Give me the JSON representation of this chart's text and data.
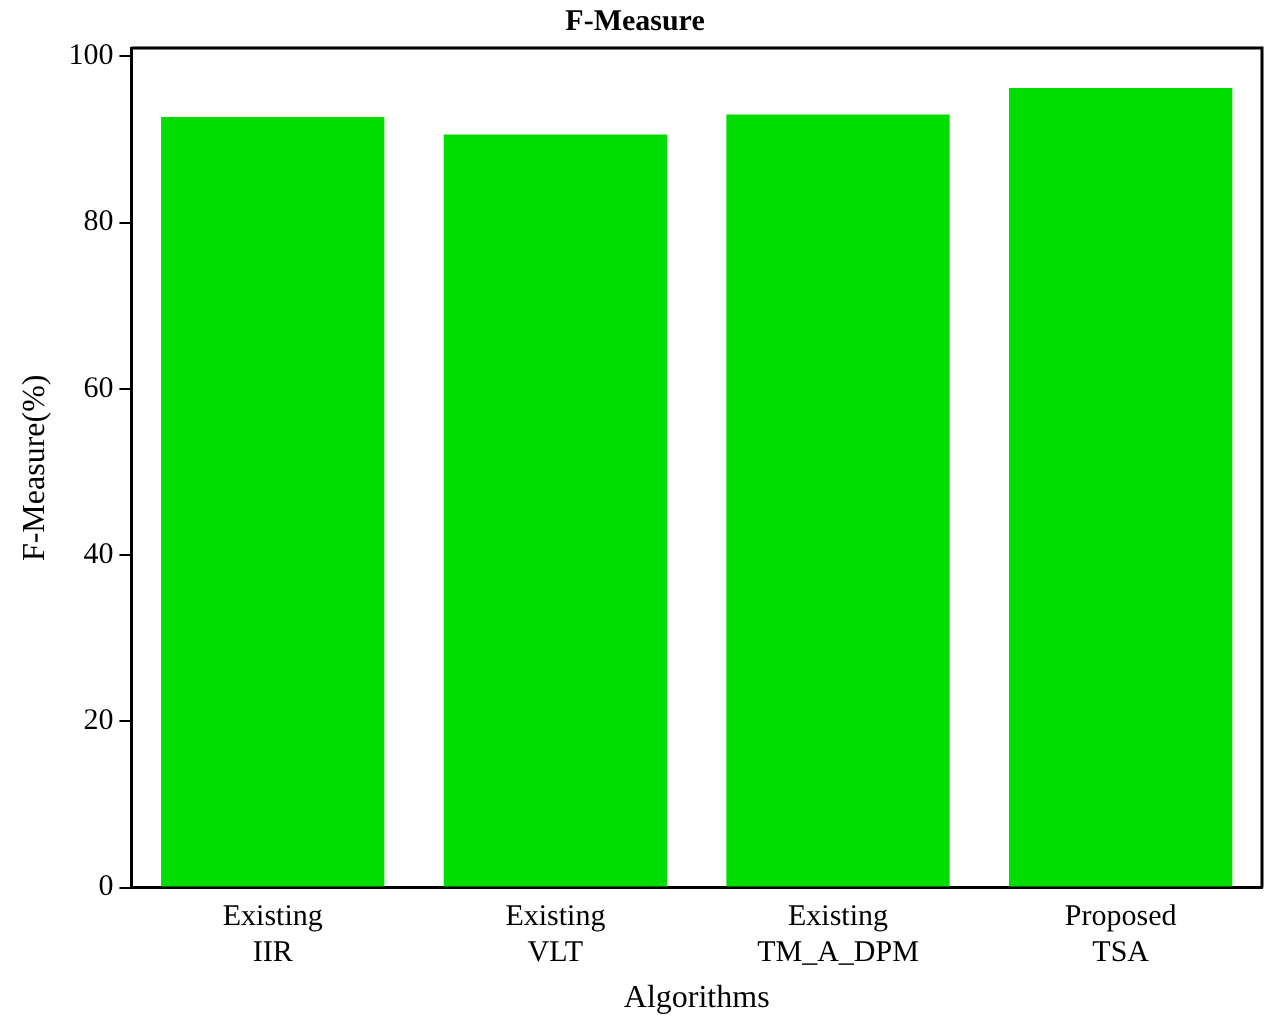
{
  "chart_data": {
    "type": "bar",
    "title": "F-Measure",
    "xlabel": "Algorithms",
    "ylabel": "F-Measure(%)",
    "categories": [
      "Existing\nIIR",
      "Existing\nVLT",
      "Existing\nTM_A_DPM",
      "Proposed\nTSA"
    ],
    "values": [
      92.7,
      90.6,
      93.0,
      96.2
    ],
    "color": "#00dd00",
    "ylim": [
      0,
      101
    ],
    "yticks": [
      0,
      20,
      40,
      60,
      80,
      100
    ],
    "grid": false,
    "legend": false
  }
}
